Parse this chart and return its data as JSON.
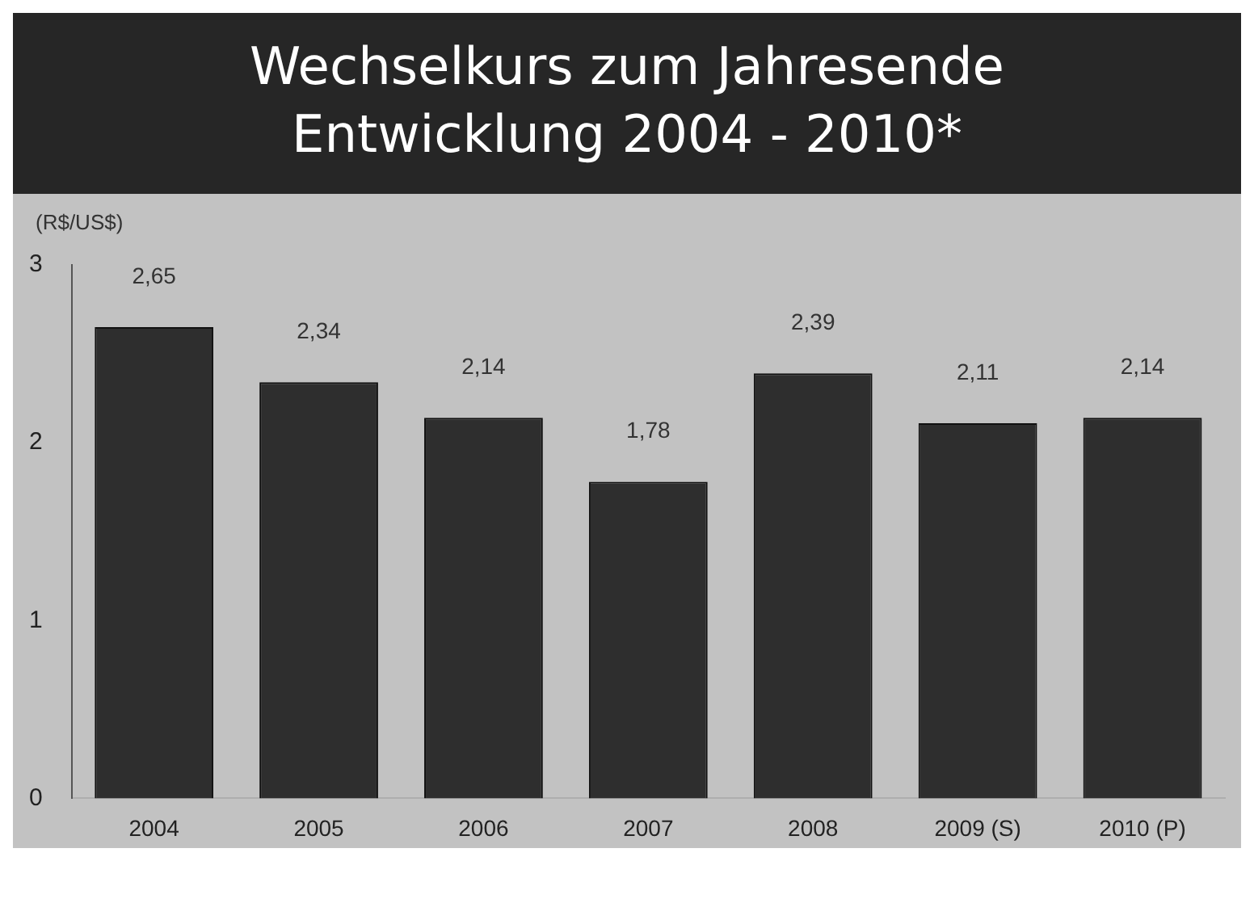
{
  "chart_data": {
    "type": "bar",
    "title": "Wechselkurs zum Jahresende",
    "subtitle": "Entwicklung 2004 - 2010*",
    "ylabel": "(R$/US$)",
    "categories": [
      "2004",
      "2005",
      "2006",
      "2007",
      "2008",
      "2009 (S)",
      "2010 (P)"
    ],
    "values": [
      2.65,
      2.34,
      2.14,
      1.78,
      2.39,
      2.11,
      2.14
    ],
    "value_labels": [
      "2,65",
      "2,34",
      "2,14",
      "1,78",
      "2,39",
      "2,11",
      "2,14"
    ],
    "color": "#2e2e2e",
    "ylim": [
      0,
      3
    ],
    "yticks": [
      0,
      1,
      2,
      3
    ],
    "grid": false,
    "legend": false
  }
}
